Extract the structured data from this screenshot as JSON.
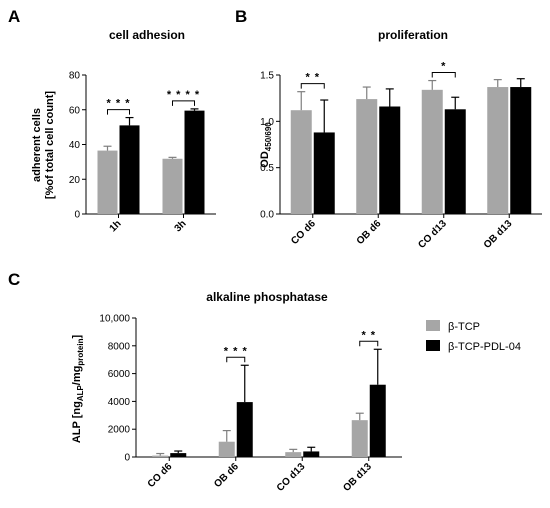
{
  "colors": {
    "tcp": "#a6a6a6",
    "pdl": "#000000"
  },
  "chart_data": [
    {
      "panel": "A",
      "type": "bar",
      "title": "cell adhesion",
      "ylabel_line1": "adherent cells",
      "ylabel_line2": "[%of total cell count]",
      "ylim": [
        0,
        80
      ],
      "yticks": [
        "0",
        "20",
        "40",
        "60",
        "80"
      ],
      "categories": [
        "1h",
        "3h"
      ],
      "series": [
        {
          "name": "β-TCP",
          "values": [
            36.5,
            31.8
          ],
          "errors": [
            2.5,
            0.8
          ]
        },
        {
          "name": "β-TCP-PDL-04",
          "values": [
            51,
            59.5
          ],
          "errors": [
            4.5,
            1.0
          ]
        }
      ],
      "significance": [
        {
          "category": 0,
          "label": "* * *"
        },
        {
          "category": 1,
          "label": "* * * *"
        }
      ]
    },
    {
      "panel": "B",
      "type": "bar",
      "title": "proliferation",
      "ylabel_main": "OD",
      "ylabel_sub": "450/690",
      "ylim": [
        0,
        1.5
      ],
      "yticks": [
        "0.0",
        "0.5",
        "1.0",
        "1.5"
      ],
      "categories": [
        "CO d6",
        "OB d6",
        "CO d13",
        "OB d13"
      ],
      "series": [
        {
          "name": "β-TCP",
          "values": [
            1.12,
            1.24,
            1.34,
            1.37
          ],
          "errors": [
            0.2,
            0.13,
            0.1,
            0.08
          ]
        },
        {
          "name": "β-TCP-PDL-04",
          "values": [
            0.88,
            1.16,
            1.13,
            1.37
          ],
          "errors": [
            0.35,
            0.19,
            0.13,
            0.09
          ]
        }
      ],
      "significance": [
        {
          "category": 0,
          "label": "* *"
        },
        {
          "category": 2,
          "label": "*"
        }
      ]
    },
    {
      "panel": "C",
      "type": "bar",
      "title": "alkaline phosphatase",
      "ylabel_main": "ALP [ng",
      "ylabel_sub1": "ALP",
      "ylabel_mid": "/mg",
      "ylabel_sub2": "protein",
      "ylabel_end": "]",
      "ylim": [
        0,
        10000
      ],
      "yticks": [
        "0",
        "2000",
        "4000",
        "6000",
        "8000",
        "10,000"
      ],
      "categories": [
        "CO d6",
        "OB d6",
        "CO d13",
        "OB d13"
      ],
      "series": [
        {
          "name": "β-TCP",
          "values": [
            100,
            1100,
            350,
            2650
          ],
          "errors": [
            150,
            800,
            200,
            500
          ]
        },
        {
          "name": "β-TCP-PDL-04",
          "values": [
            280,
            3950,
            400,
            5200
          ],
          "errors": [
            150,
            2650,
            300,
            2550
          ]
        }
      ],
      "significance": [
        {
          "category": 1,
          "label": "* * *"
        },
        {
          "category": 3,
          "label": "* *"
        }
      ],
      "legend": [
        "β-TCP",
        "β-TCP-PDL-04"
      ]
    }
  ]
}
